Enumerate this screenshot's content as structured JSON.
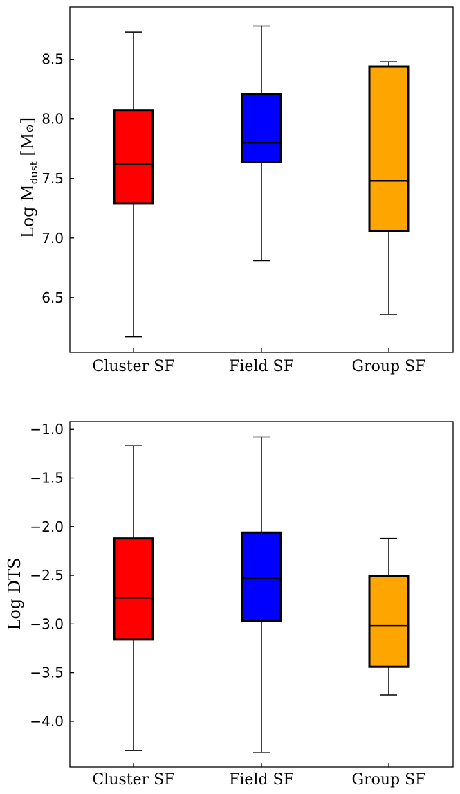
{
  "chart_data": [
    {
      "type": "boxplot",
      "ylabel": "Log M_dust [M☉]",
      "ylabel_parts": {
        "main": "Log M",
        "sub": "dust",
        "bracket_open": " [M",
        "sun": "⊙",
        "bracket_close": "]"
      },
      "ylim": [
        6.04,
        8.94
      ],
      "yticks": [
        6.5,
        7.0,
        7.5,
        8.0,
        8.5
      ],
      "ytick_labels": [
        "6.5",
        "7.0",
        "7.5",
        "8.0",
        "8.5"
      ],
      "categories": [
        "Cluster SF",
        "Field SF",
        "Group SF"
      ],
      "boxes": [
        {
          "name": "Cluster SF",
          "color": "#ff0000",
          "whisker_low": 6.17,
          "q1": 7.29,
          "median": 7.62,
          "q3": 8.07,
          "whisker_high": 8.73
        },
        {
          "name": "Field SF",
          "color": "#0000ff",
          "whisker_low": 6.81,
          "q1": 7.64,
          "median": 7.8,
          "q3": 8.21,
          "whisker_high": 8.78
        },
        {
          "name": "Group SF",
          "color": "#ffa500",
          "whisker_low": 6.36,
          "q1": 7.06,
          "median": 7.48,
          "q3": 8.44,
          "whisker_high": 8.48
        }
      ]
    },
    {
      "type": "boxplot",
      "ylabel": "Log DTS",
      "ylim": [
        -4.47,
        -0.92
      ],
      "yticks": [
        -4.0,
        -3.5,
        -3.0,
        -2.5,
        -2.0,
        -1.5,
        -1.0
      ],
      "ytick_labels": [
        "−4.0",
        "−3.5",
        "−3.0",
        "−2.5",
        "−2.0",
        "−1.5",
        "−1.0"
      ],
      "categories": [
        "Cluster SF",
        "Field SF",
        "Group SF"
      ],
      "boxes": [
        {
          "name": "Cluster SF",
          "color": "#ff0000",
          "whisker_low": -4.3,
          "q1": -3.16,
          "median": -2.73,
          "q3": -2.12,
          "whisker_high": -1.17
        },
        {
          "name": "Field SF",
          "color": "#0000ff",
          "whisker_low": -4.32,
          "q1": -2.97,
          "median": -2.53,
          "q3": -2.06,
          "whisker_high": -1.08
        },
        {
          "name": "Group SF",
          "color": "#ffa500",
          "whisker_low": -3.73,
          "q1": -3.44,
          "median": -3.02,
          "q3": -2.51,
          "whisker_high": -2.12
        }
      ]
    }
  ]
}
